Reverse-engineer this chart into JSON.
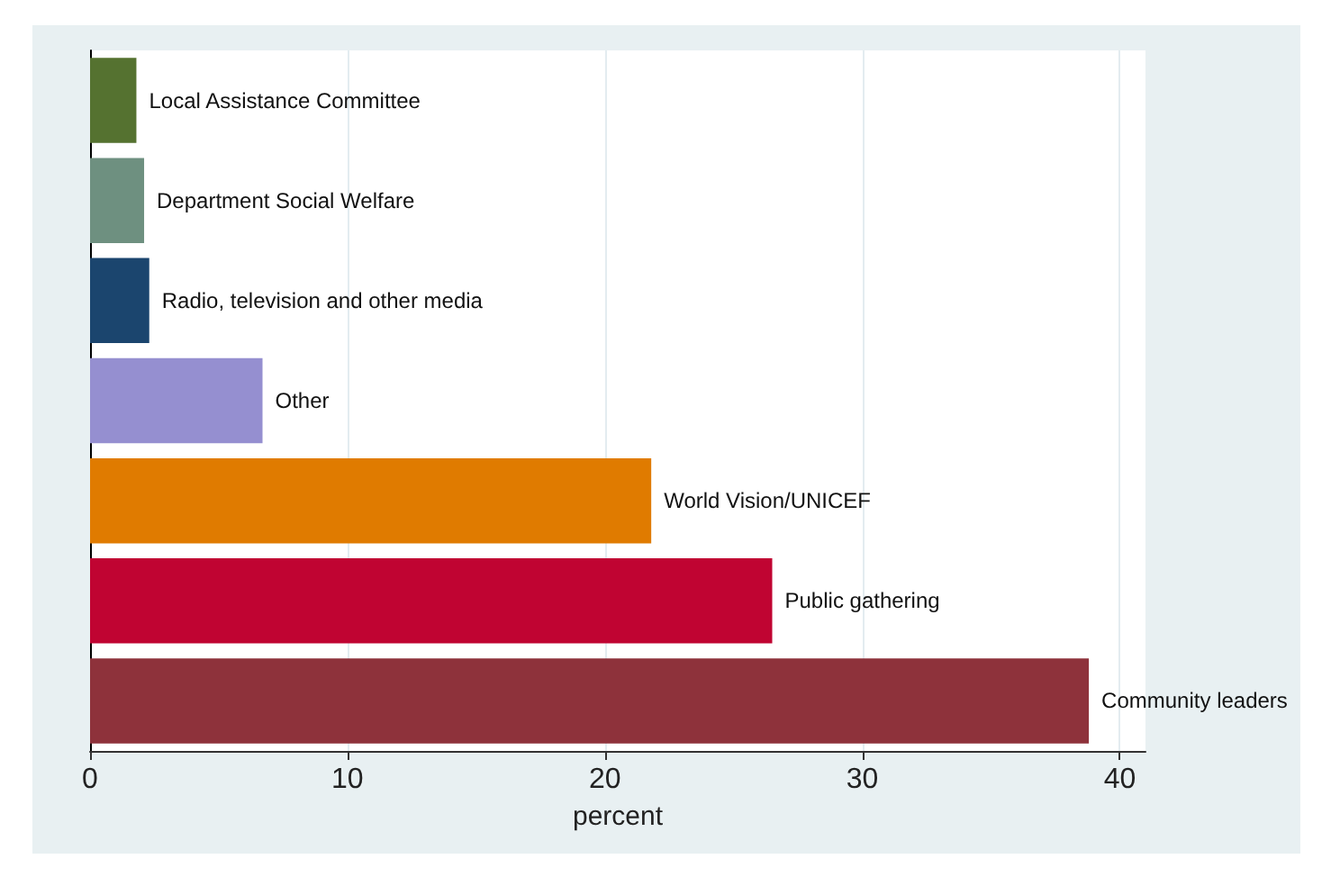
{
  "chart_data": {
    "type": "bar",
    "orientation": "horizontal",
    "xlabel": "percent",
    "categories": [
      "Local Assistance Committee",
      "Department Social Welfare",
      "Radio, television and other media",
      "Other",
      "World Vision/UNICEF",
      "Public gathering",
      "Community leaders"
    ],
    "values": [
      1.8,
      2.1,
      2.3,
      6.7,
      21.8,
      26.5,
      38.8
    ],
    "colors": [
      "#557230",
      "#6e9080",
      "#1b456e",
      "#958fd0",
      "#e07b00",
      "#c00432",
      "#8e323b"
    ],
    "xlim": [
      0,
      41
    ],
    "xticks": [
      0,
      10,
      20,
      30,
      40
    ],
    "grid": "x",
    "tick_labels": "x"
  }
}
